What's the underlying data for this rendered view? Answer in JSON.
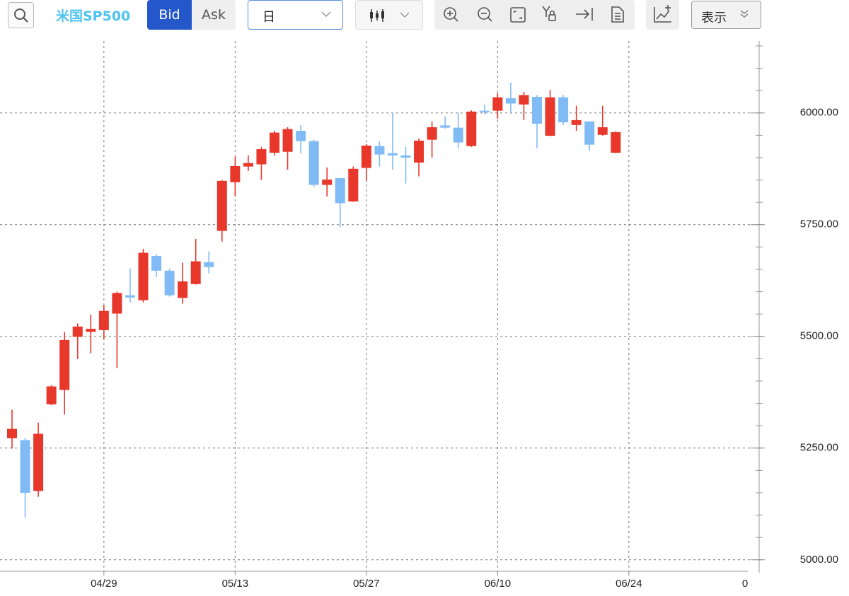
{
  "toolbar": {
    "symbol": "米国SP500",
    "bid": "Bid",
    "ask": "Ask",
    "period": "日",
    "display": "表示"
  },
  "chart_data": {
    "type": "candlestick",
    "categories": [
      null,
      null,
      null,
      null,
      null,
      null,
      null,
      "04/29",
      null,
      null,
      null,
      null,
      null,
      null,
      null,
      null,
      null,
      "05/13",
      null,
      null,
      null,
      null,
      null,
      null,
      null,
      null,
      null,
      "05/27",
      null,
      null,
      null,
      null,
      null,
      null,
      null,
      null,
      null,
      "06/10",
      null,
      null,
      null,
      null,
      null,
      null,
      null,
      null,
      null,
      "06/24"
    ],
    "open": [
      5272,
      5268,
      5154,
      5348,
      5380,
      5499,
      5510,
      5514,
      5551,
      5592,
      5581,
      5680,
      5647,
      5586,
      5617,
      5666,
      5736,
      5845,
      5880,
      5885,
      5911,
      5913,
      5960,
      5937,
      5839,
      5854,
      5802,
      5877,
      5926,
      5910,
      5905,
      5889,
      5940,
      5972,
      5967,
      5926,
      6005,
      6005,
      6033,
      6019,
      6036,
      5949,
      6035,
      5973,
      5981,
      5951,
      5911,
      null
    ],
    "high": [
      5336,
      5272,
      5307,
      5391,
      5510,
      5529,
      5549,
      5570,
      5600,
      5652,
      5696,
      5684,
      5652,
      5665,
      5718,
      5690,
      5850,
      5902,
      5905,
      5924,
      5960,
      5968,
      5973,
      5940,
      5878,
      5854,
      5880,
      5930,
      5937,
      6000,
      5924,
      5943,
      5981,
      5992,
      6000,
      6006,
      6019,
      6044,
      6068,
      6047,
      6040,
      6051,
      6040,
      6016,
      5981,
      6016,
      5959,
      null
    ],
    "low": [
      5249,
      5095,
      5141,
      5346,
      5325,
      5449,
      5462,
      5494,
      5429,
      5576,
      5576,
      5633,
      5589,
      5573,
      5616,
      5641,
      5712,
      5813,
      5870,
      5850,
      5905,
      5873,
      5910,
      5834,
      5813,
      5744,
      5801,
      5848,
      5880,
      5873,
      5842,
      5858,
      5900,
      5965,
      5921,
      5924,
      5997,
      5987,
      6000,
      5984,
      5921,
      5948,
      5973,
      5960,
      5916,
      5949,
      5910,
      null
    ],
    "close": [
      5293,
      5150,
      5282,
      5388,
      5492,
      5522,
      5517,
      5557,
      5597,
      5587,
      5687,
      5647,
      5592,
      5623,
      5668,
      5655,
      5848,
      5881,
      5888,
      5919,
      5956,
      5964,
      5937,
      5839,
      5851,
      5798,
      5875,
      5927,
      5907,
      5905,
      5900,
      5938,
      5968,
      5967,
      5934,
      6003,
      6002,
      6035,
      6021,
      6040,
      5976,
      6035,
      5979,
      5984,
      5929,
      5968,
      5957,
      null
    ],
    "up_color": "#e8382b",
    "down_color": "#80bbf6",
    "ylim": [
      4987,
      6161
    ],
    "yticks": [
      {
        "value": 5000,
        "label": "5000.00"
      },
      {
        "value": 5250,
        "label": "5250.00"
      },
      {
        "value": 5500,
        "label": "5500.00"
      },
      {
        "value": 5750,
        "label": "5750.00"
      },
      {
        "value": 6000,
        "label": "6000.00"
      }
    ],
    "yticks_minor": [
      5000,
      5050,
      5100,
      5150,
      5200,
      5250,
      5300,
      5350,
      5400,
      5450,
      5500,
      5550,
      5600,
      5650,
      5700,
      5750,
      5800,
      5850,
      5900,
      5950,
      6000,
      6050,
      6100,
      6150
    ],
    "corner_label": "0",
    "grid": true
  }
}
